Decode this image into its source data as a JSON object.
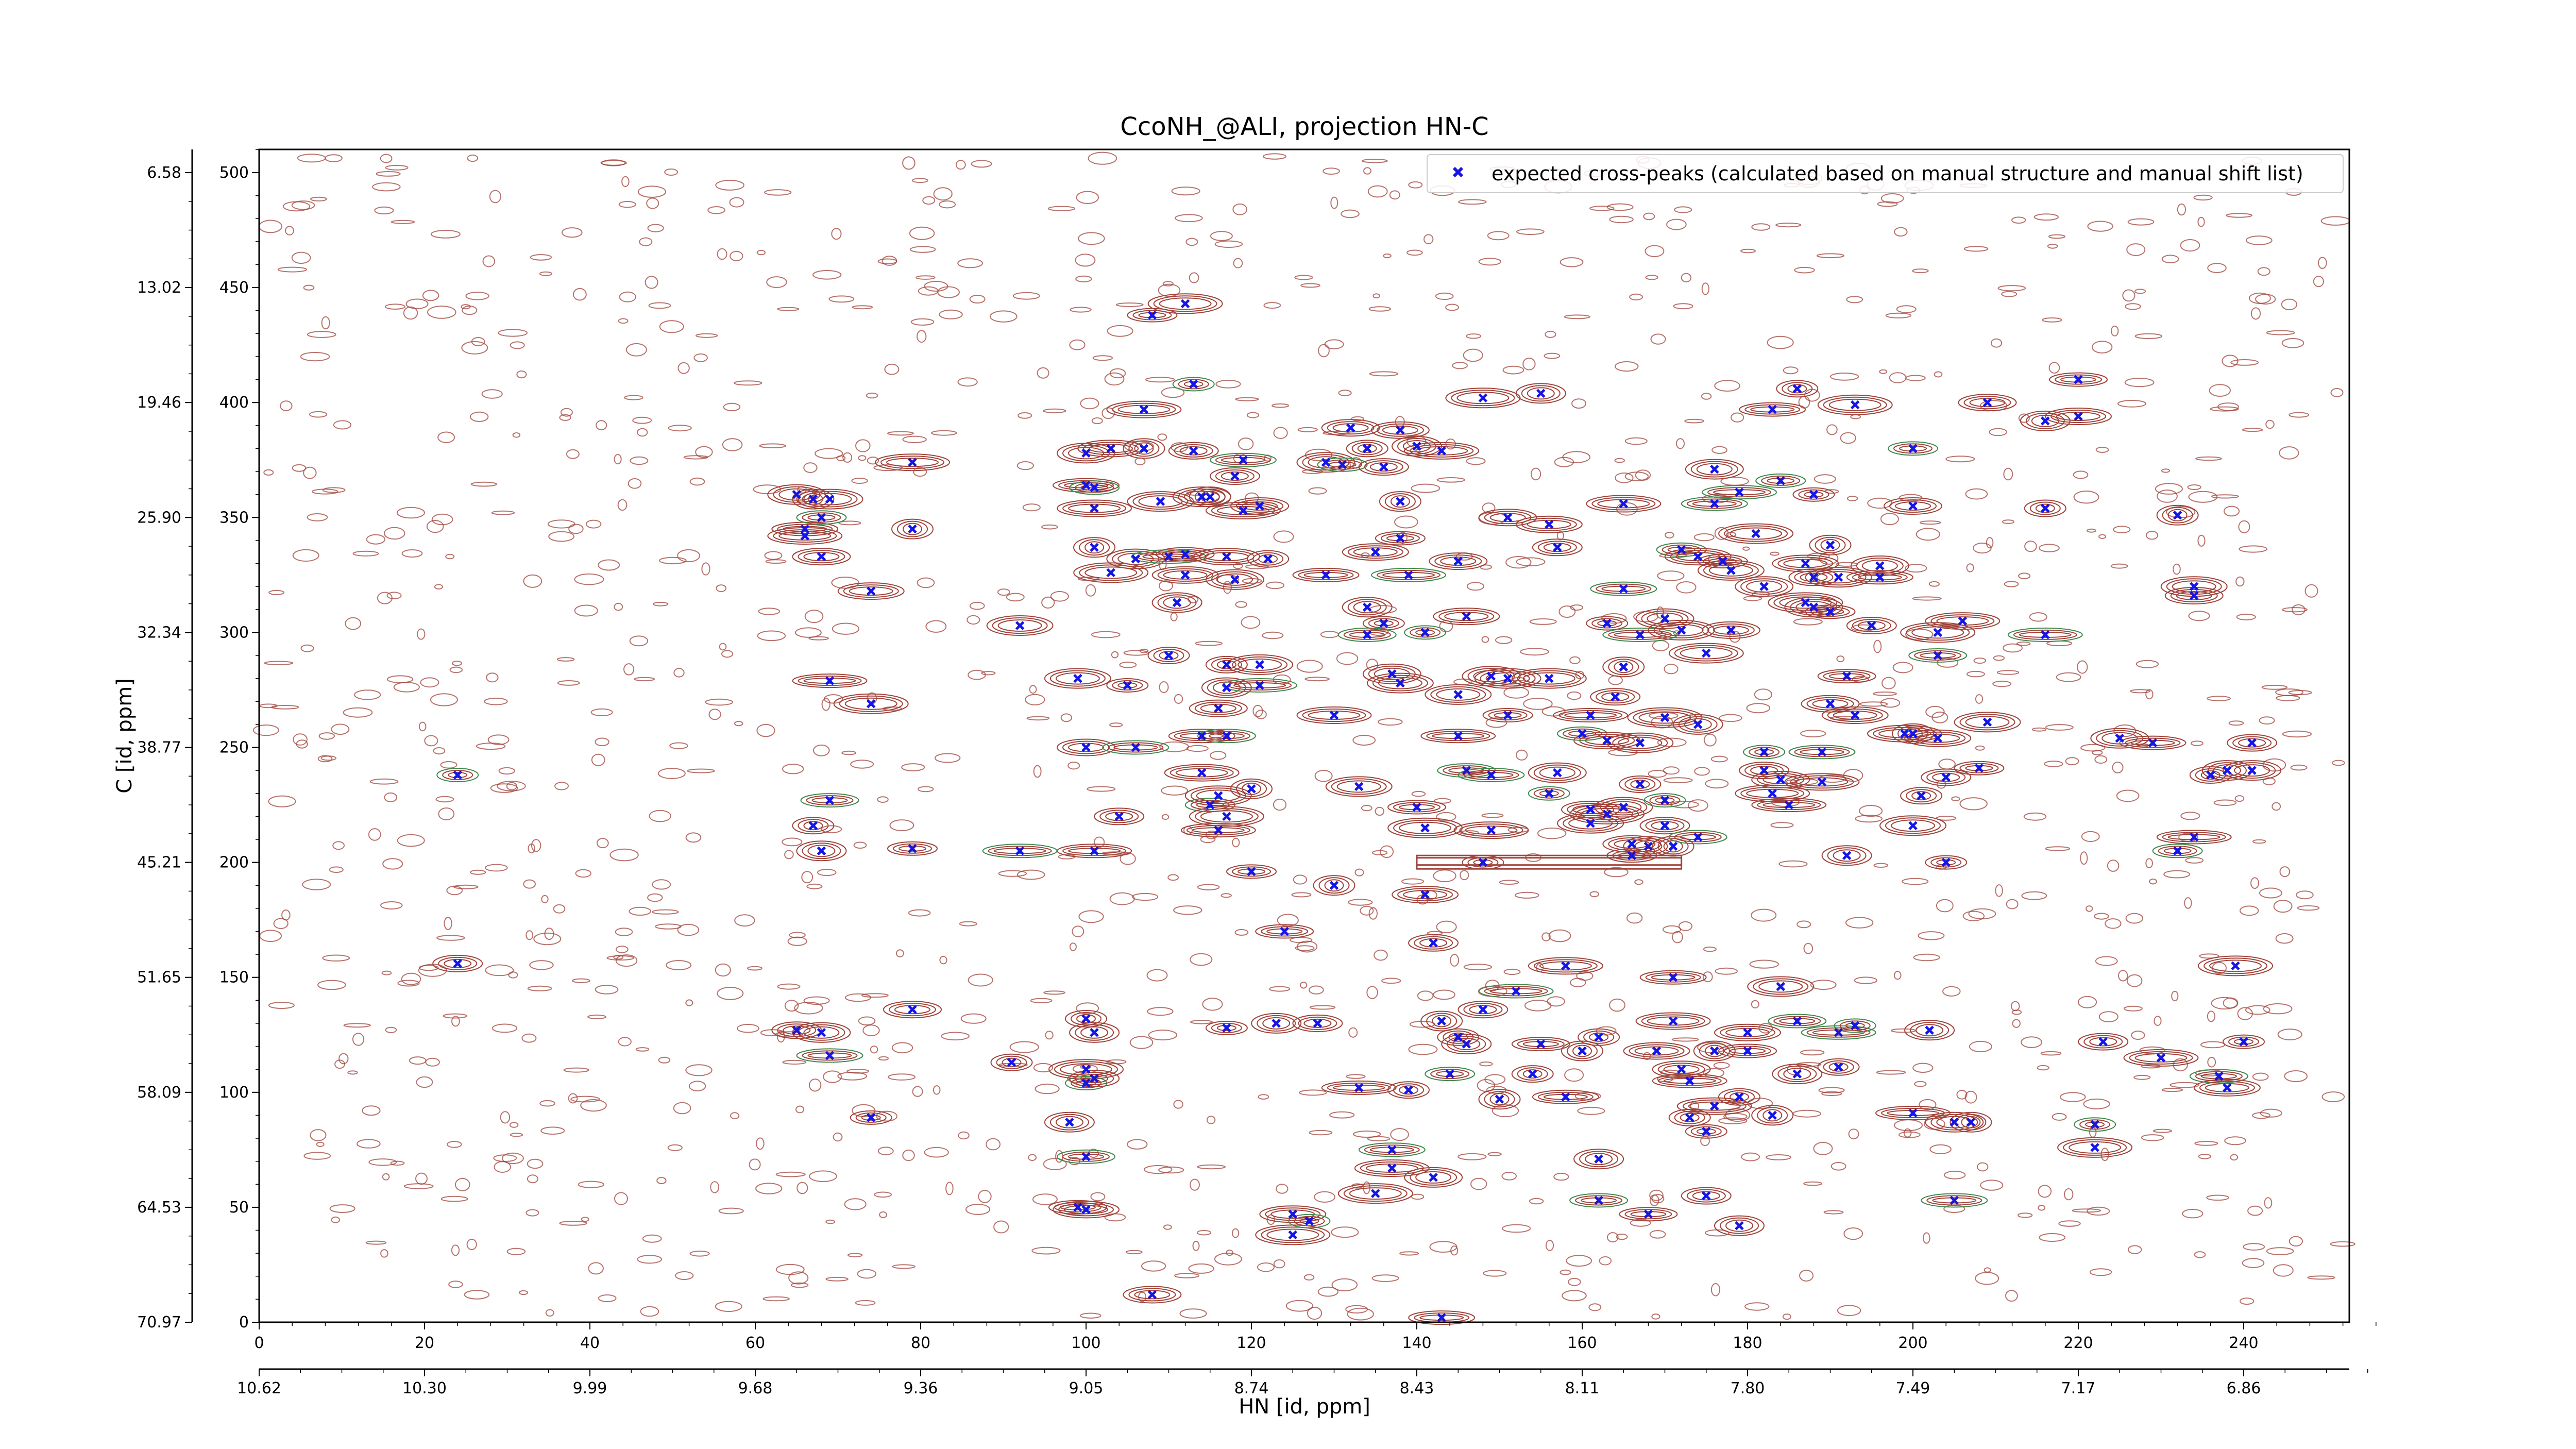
{
  "chart_data": {
    "type": "scatter",
    "title": "CcoNH_@ALI, projection HN-C",
    "xlabel": "HN [id, ppm]",
    "ylabel": "C [id, ppm]",
    "xlim": [
      0,
      258
    ],
    "ylim": [
      0,
      510
    ],
    "x_index_ticks": [
      "0",
      "20",
      "40",
      "60",
      "80",
      "100",
      "120",
      "140",
      "160",
      "180",
      "200",
      "220",
      "240"
    ],
    "x_ppm_ticks": [
      "10.62",
      "10.30",
      "9.99",
      "9.68",
      "9.36",
      "9.05",
      "8.74",
      "8.43",
      "8.11",
      "7.80",
      "7.49",
      "7.17",
      "6.86"
    ],
    "y_index_ticks": [
      "0",
      "50",
      "100",
      "150",
      "200",
      "250",
      "300",
      "350",
      "400",
      "450",
      "500"
    ],
    "y_ppm_ticks": [
      "70.97",
      "64.53",
      "58.09",
      "51.65",
      "45.21",
      "38.77",
      "32.34",
      "25.90",
      "19.46",
      "13.02",
      "6.58"
    ],
    "legend": {
      "label": "expected cross-peaks (calculated based on manual structure and manual shift list)",
      "placement": "top-right"
    },
    "colors": {
      "positive_contours": "#a0433a",
      "negative_contours": "#3e8a4f",
      "expected_peaks": "#1515e6"
    },
    "grid": false,
    "series": [
      {
        "name": "expected cross-peaks (calculated based on manual structure and manual shift list)",
        "marker": "x",
        "points": [
          [
            24,
            238
          ],
          [
            24,
            156
          ],
          [
            65,
            360
          ],
          [
            66,
            345
          ],
          [
            66,
            342
          ],
          [
            67,
            358
          ],
          [
            68,
            350
          ],
          [
            68,
            333
          ],
          [
            69,
            358
          ],
          [
            69,
            279
          ],
          [
            67,
            216
          ],
          [
            68,
            205
          ],
          [
            69,
            227
          ],
          [
            74,
            318
          ],
          [
            74,
            269
          ],
          [
            74,
            89
          ],
          [
            65,
            127
          ],
          [
            68,
            126
          ],
          [
            69,
            116
          ],
          [
            79,
            374
          ],
          [
            79,
            345
          ],
          [
            79,
            206
          ],
          [
            79,
            136
          ],
          [
            92,
            303
          ],
          [
            92,
            205
          ],
          [
            91,
            113
          ],
          [
            98,
            87
          ],
          [
            99,
            50
          ],
          [
            100,
            49
          ],
          [
            100,
            110
          ],
          [
            100,
            104
          ],
          [
            101,
            106
          ],
          [
            100,
            378
          ],
          [
            100,
            364
          ],
          [
            101,
            354
          ],
          [
            101,
            337
          ],
          [
            101,
            363
          ],
          [
            100,
            250
          ],
          [
            99,
            280
          ],
          [
            101,
            205
          ],
          [
            100,
            132
          ],
          [
            101,
            126
          ],
          [
            100,
            72
          ],
          [
            103,
            380
          ],
          [
            103,
            326
          ],
          [
            105,
            277
          ],
          [
            104,
            220
          ],
          [
            106,
            332
          ],
          [
            106,
            250
          ],
          [
            107,
            397
          ],
          [
            107,
            380
          ],
          [
            108,
            438
          ],
          [
            108,
            12
          ],
          [
            109,
            357
          ],
          [
            110,
            333
          ],
          [
            110,
            290
          ],
          [
            111,
            313
          ],
          [
            112,
            334
          ],
          [
            112,
            325
          ],
          [
            112,
            443
          ],
          [
            113,
            408
          ],
          [
            113,
            379
          ],
          [
            114,
            359
          ],
          [
            114,
            255
          ],
          [
            114,
            239
          ],
          [
            115,
            359
          ],
          [
            115,
            225
          ],
          [
            116,
            267
          ],
          [
            116,
            229
          ],
          [
            116,
            214
          ],
          [
            117,
            286
          ],
          [
            117,
            276
          ],
          [
            117,
            255
          ],
          [
            117,
            333
          ],
          [
            117,
            220
          ],
          [
            117,
            128
          ],
          [
            118,
            368
          ],
          [
            118,
            323
          ],
          [
            119,
            375
          ],
          [
            119,
            353
          ],
          [
            120,
            232
          ],
          [
            120,
            196
          ],
          [
            121,
            355
          ],
          [
            121,
            286
          ],
          [
            121,
            277
          ],
          [
            122,
            332
          ],
          [
            123,
            130
          ],
          [
            124,
            170
          ],
          [
            125,
            47
          ],
          [
            125,
            38
          ],
          [
            127,
            44
          ],
          [
            128,
            130
          ],
          [
            129,
            374
          ],
          [
            129,
            325
          ],
          [
            130,
            264
          ],
          [
            130,
            190
          ],
          [
            131,
            373
          ],
          [
            132,
            389
          ],
          [
            133,
            233
          ],
          [
            133,
            102
          ],
          [
            134,
            380
          ],
          [
            134,
            311
          ],
          [
            134,
            299
          ],
          [
            135,
            335
          ],
          [
            135,
            56
          ],
          [
            136,
            304
          ],
          [
            136,
            372
          ],
          [
            137,
            282
          ],
          [
            137,
            75
          ],
          [
            137,
            67
          ],
          [
            138,
            357
          ],
          [
            138,
            341
          ],
          [
            138,
            388
          ],
          [
            138,
            278
          ],
          [
            139,
            325
          ],
          [
            139,
            101
          ],
          [
            140,
            381
          ],
          [
            140,
            224
          ],
          [
            141,
            186
          ],
          [
            141,
            215
          ],
          [
            141,
            300
          ],
          [
            142,
            165
          ],
          [
            142,
            63
          ],
          [
            143,
            2
          ],
          [
            143,
            379
          ],
          [
            143,
            131
          ],
          [
            144,
            108
          ],
          [
            145,
            331
          ],
          [
            145,
            273
          ],
          [
            145,
            255
          ],
          [
            145,
            124
          ],
          [
            146,
            121
          ],
          [
            146,
            240
          ],
          [
            146,
            307
          ],
          [
            148,
            402
          ],
          [
            148,
            200
          ],
          [
            148,
            136
          ],
          [
            149,
            281
          ],
          [
            149,
            238
          ],
          [
            149,
            214
          ],
          [
            150,
            97
          ],
          [
            151,
            264
          ],
          [
            151,
            350
          ],
          [
            151,
            280
          ],
          [
            152,
            144
          ],
          [
            154,
            108
          ],
          [
            155,
            404
          ],
          [
            155,
            121
          ],
          [
            156,
            347
          ],
          [
            156,
            280
          ],
          [
            156,
            230
          ],
          [
            157,
            337
          ],
          [
            157,
            239
          ],
          [
            158,
            98
          ],
          [
            158,
            155
          ],
          [
            160,
            118
          ],
          [
            160,
            256
          ],
          [
            161,
            223
          ],
          [
            161,
            217
          ],
          [
            161,
            264
          ],
          [
            162,
            124
          ],
          [
            162,
            71
          ],
          [
            162,
            53
          ],
          [
            163,
            253
          ],
          [
            163,
            221
          ],
          [
            163,
            304
          ],
          [
            164,
            272
          ],
          [
            165,
            224
          ],
          [
            165,
            319
          ],
          [
            165,
            356
          ],
          [
            165,
            285
          ],
          [
            166,
            203
          ],
          [
            166,
            208
          ],
          [
            167,
            252
          ],
          [
            167,
            299
          ],
          [
            167,
            234
          ],
          [
            168,
            207
          ],
          [
            168,
            47
          ],
          [
            169,
            118
          ],
          [
            170,
            263
          ],
          [
            170,
            227
          ],
          [
            170,
            216
          ],
          [
            170,
            306
          ],
          [
            171,
            150
          ],
          [
            171,
            131
          ],
          [
            171,
            207
          ],
          [
            172,
            336
          ],
          [
            172,
            110
          ],
          [
            172,
            301
          ],
          [
            173,
            105
          ],
          [
            173,
            89
          ],
          [
            174,
            260
          ],
          [
            174,
            211
          ],
          [
            174,
            333
          ],
          [
            175,
            291
          ],
          [
            175,
            83
          ],
          [
            175,
            55
          ],
          [
            176,
            371
          ],
          [
            176,
            356
          ],
          [
            176,
            94
          ],
          [
            176,
            118
          ],
          [
            177,
            331
          ],
          [
            178,
            301
          ],
          [
            178,
            327
          ],
          [
            179,
            361
          ],
          [
            179,
            98
          ],
          [
            179,
            42
          ],
          [
            180,
            118
          ],
          [
            180,
            126
          ],
          [
            181,
            343
          ],
          [
            182,
            248
          ],
          [
            182,
            240
          ],
          [
            182,
            320
          ],
          [
            183,
            397
          ],
          [
            183,
            230
          ],
          [
            183,
            90
          ],
          [
            184,
            366
          ],
          [
            184,
            236
          ],
          [
            184,
            146
          ],
          [
            185,
            225
          ],
          [
            186,
            406
          ],
          [
            186,
            108
          ],
          [
            186,
            131
          ],
          [
            187,
            330
          ],
          [
            187,
            313
          ],
          [
            188,
            360
          ],
          [
            188,
            324
          ],
          [
            188,
            311
          ],
          [
            189,
            248
          ],
          [
            189,
            235
          ],
          [
            190,
            338
          ],
          [
            190,
            309
          ],
          [
            190,
            269
          ],
          [
            191,
            324
          ],
          [
            191,
            126
          ],
          [
            191,
            111
          ],
          [
            192,
            203
          ],
          [
            192,
            281
          ],
          [
            193,
            264
          ],
          [
            193,
            399
          ],
          [
            193,
            129
          ],
          [
            195,
            303
          ],
          [
            196,
            329
          ],
          [
            196,
            324
          ],
          [
            199,
            256
          ],
          [
            200,
            256
          ],
          [
            200,
            380
          ],
          [
            200,
            355
          ],
          [
            200,
            216
          ],
          [
            200,
            91
          ],
          [
            201,
            229
          ],
          [
            202,
            127
          ],
          [
            203,
            290
          ],
          [
            203,
            254
          ],
          [
            203,
            300
          ],
          [
            204,
            200
          ],
          [
            204,
            237
          ],
          [
            205,
            87
          ],
          [
            205,
            53
          ],
          [
            206,
            305
          ],
          [
            207,
            87
          ],
          [
            208,
            241
          ],
          [
            209,
            400
          ],
          [
            209,
            261
          ],
          [
            216,
            299
          ],
          [
            216,
            354
          ],
          [
            216,
            392
          ],
          [
            220,
            410
          ],
          [
            220,
            394
          ],
          [
            222,
            76
          ],
          [
            222,
            86
          ],
          [
            223,
            122
          ],
          [
            225,
            254
          ],
          [
            229,
            252
          ],
          [
            230,
            115
          ],
          [
            232,
            351
          ],
          [
            232,
            205
          ],
          [
            234,
            316
          ],
          [
            234,
            320
          ],
          [
            234,
            211
          ],
          [
            236,
            238
          ],
          [
            238,
            240
          ],
          [
            237,
            107
          ],
          [
            238,
            102
          ],
          [
            239,
            155
          ],
          [
            240,
            122
          ],
          [
            241,
            252
          ],
          [
            241,
            240
          ]
        ]
      }
    ]
  }
}
